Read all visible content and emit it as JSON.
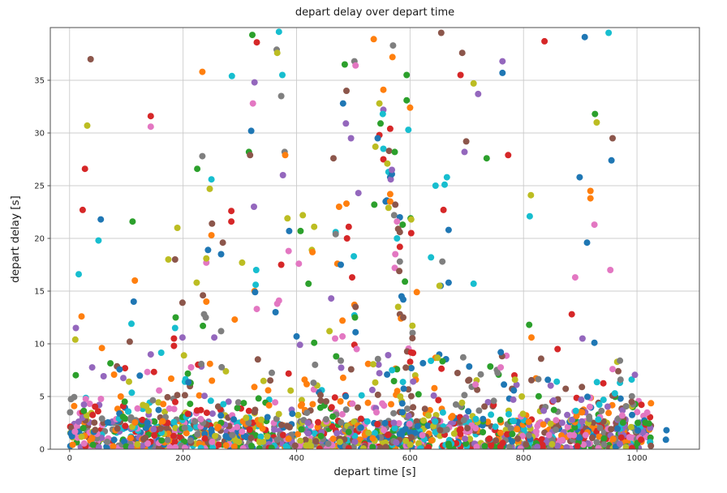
{
  "chart_data": {
    "type": "scatter",
    "title": "depart delay over depart time",
    "xlabel": "depart time [s]",
    "ylabel": "depart delay [s]",
    "xlim": [
      -34,
      1110
    ],
    "ylim": [
      0,
      40
    ],
    "x_ticks": [
      0,
      200,
      400,
      600,
      800,
      1000
    ],
    "y_ticks": [
      0,
      5,
      10,
      15,
      20,
      25,
      30,
      35
    ],
    "grid": true,
    "legend": "none",
    "marker_radius_px": 4,
    "palette": [
      "#1f77b4",
      "#ff7f0e",
      "#2ca02c",
      "#d62728",
      "#9467bd",
      "#8c564b",
      "#e377c2",
      "#7f7f7f",
      "#bcbd22",
      "#17becf"
    ],
    "palette_names": [
      "blue",
      "orange",
      "green",
      "red",
      "purple",
      "brown",
      "pink",
      "gray",
      "olive",
      "cyan"
    ],
    "colors": {
      "background": "#ffffff",
      "grid": "#cccccc",
      "spine": "#4d4d4d",
      "tick_text": "#262626"
    },
    "points": [
      [
        37,
        37.0,
        5
      ],
      [
        322,
        39.3,
        2
      ],
      [
        330,
        38.6,
        3
      ],
      [
        234,
        35.8,
        1
      ],
      [
        286,
        35.4,
        9
      ],
      [
        326,
        34.8,
        4
      ],
      [
        323,
        32.8,
        6
      ],
      [
        143,
        31.6,
        3
      ],
      [
        31,
        30.7,
        8
      ],
      [
        143,
        30.6,
        6
      ],
      [
        320,
        30.2,
        0
      ],
      [
        234,
        27.8,
        7
      ],
      [
        316,
        28.2,
        2
      ],
      [
        318,
        27.9,
        5
      ],
      [
        225,
        26.6,
        2
      ],
      [
        27,
        26.6,
        3
      ],
      [
        250,
        25.6,
        9
      ],
      [
        247,
        24.7,
        8
      ],
      [
        369,
        39.6,
        9
      ],
      [
        365,
        37.9,
        7
      ],
      [
        366,
        37.6,
        8
      ],
      [
        536,
        38.9,
        1
      ],
      [
        570,
        38.3,
        7
      ],
      [
        655,
        39.5,
        5
      ],
      [
        569,
        37.2,
        1
      ],
      [
        485,
        36.5,
        2
      ],
      [
        502,
        36.8,
        7
      ],
      [
        504,
        36.4,
        6
      ],
      [
        692,
        37.6,
        5
      ],
      [
        375,
        35.5,
        9
      ],
      [
        594,
        35.5,
        2
      ],
      [
        689,
        35.5,
        3
      ],
      [
        712,
        34.7,
        8
      ],
      [
        373,
        33.5,
        7
      ],
      [
        488,
        34.0,
        5
      ],
      [
        553,
        34.1,
        1
      ],
      [
        720,
        33.7,
        4
      ],
      [
        482,
        32.8,
        0
      ],
      [
        546,
        32.8,
        8
      ],
      [
        594,
        33.1,
        2
      ],
      [
        600,
        32.4,
        1
      ],
      [
        553,
        32.2,
        4
      ],
      [
        552,
        31.8,
        9
      ],
      [
        487,
        30.9,
        4
      ],
      [
        548,
        30.9,
        2
      ],
      [
        565,
        30.4,
        3
      ],
      [
        597,
        30.3,
        9
      ],
      [
        496,
        29.5,
        4
      ],
      [
        546,
        29.8,
        3
      ],
      [
        543,
        29.5,
        0
      ],
      [
        539,
        28.7,
        8
      ],
      [
        553,
        28.5,
        9
      ],
      [
        563,
        28.3,
        5
      ],
      [
        573,
        28.2,
        2
      ],
      [
        379,
        28.2,
        7
      ],
      [
        380,
        27.9,
        1
      ],
      [
        465,
        27.6,
        5
      ],
      [
        553,
        27.5,
        3
      ],
      [
        560,
        27.1,
        8
      ],
      [
        376,
        26.0,
        4
      ],
      [
        699,
        29.2,
        5
      ],
      [
        696,
        28.2,
        4
      ],
      [
        565,
        25.8,
        0
      ],
      [
        566,
        25.6,
        4
      ],
      [
        661,
        25.1,
        9
      ],
      [
        645,
        25.0,
        9
      ],
      [
        659,
        22.7,
        3
      ],
      [
        665,
        25.8,
        9
      ],
      [
        950,
        39.5,
        9
      ],
      [
        908,
        39.1,
        0
      ],
      [
        837,
        38.7,
        3
      ],
      [
        763,
        36.8,
        4
      ],
      [
        763,
        35.7,
        0
      ],
      [
        926,
        31.8,
        2
      ],
      [
        929,
        31.0,
        8
      ],
      [
        957,
        29.5,
        5
      ],
      [
        773,
        27.9,
        3
      ],
      [
        735,
        27.6,
        2
      ],
      [
        955,
        27.4,
        0
      ],
      [
        899,
        25.8,
        0
      ],
      [
        918,
        24.5,
        1
      ],
      [
        918,
        23.8,
        1
      ],
      [
        813,
        24.1,
        8
      ],
      [
        811,
        22.1,
        9
      ],
      [
        925,
        21.3,
        6
      ],
      [
        912,
        19.6,
        0
      ],
      [
        953,
        17.0,
        6
      ],
      [
        891,
        16.3,
        6
      ],
      [
        885,
        12.8,
        3
      ],
      [
        810,
        11.8,
        2
      ],
      [
        814,
        10.6,
        1
      ],
      [
        904,
        10.5,
        4
      ],
      [
        925,
        10.1,
        0
      ],
      [
        860,
        9.5,
        3
      ],
      [
        760,
        9.2,
        0
      ],
      [
        509,
        24.3,
        4
      ],
      [
        23,
        22.7,
        3
      ],
      [
        55,
        21.8,
        0
      ],
      [
        111,
        21.6,
        2
      ],
      [
        190,
        21.0,
        8
      ],
      [
        325,
        23.0,
        4
      ],
      [
        285,
        22.6,
        3
      ],
      [
        285,
        21.6,
        3
      ],
      [
        251,
        21.4,
        5
      ],
      [
        51,
        19.8,
        9
      ],
      [
        250,
        20.3,
        1
      ],
      [
        270,
        19.6,
        5
      ],
      [
        244,
        18.9,
        0
      ],
      [
        267,
        18.5,
        0
      ],
      [
        174,
        18.0,
        8
      ],
      [
        186,
        18.0,
        5
      ],
      [
        241,
        17.7,
        6
      ],
      [
        241,
        18.1,
        8
      ],
      [
        304,
        17.7,
        8
      ],
      [
        16,
        16.6,
        9
      ],
      [
        329,
        17.0,
        9
      ],
      [
        115,
        16.0,
        1
      ],
      [
        224,
        15.8,
        8
      ],
      [
        328,
        15.6,
        9
      ],
      [
        326,
        15.0,
        1
      ],
      [
        327,
        14.9,
        0
      ],
      [
        235,
        14.6,
        5
      ],
      [
        113,
        14.0,
        0
      ],
      [
        241,
        14.0,
        1
      ],
      [
        199,
        13.9,
        5
      ],
      [
        330,
        13.3,
        6
      ],
      [
        21,
        12.6,
        1
      ],
      [
        237,
        12.8,
        7
      ],
      [
        240,
        12.5,
        7
      ],
      [
        187,
        12.5,
        2
      ],
      [
        109,
        11.9,
        9
      ],
      [
        235,
        11.7,
        2
      ],
      [
        11,
        11.5,
        4
      ],
      [
        186,
        11.5,
        9
      ],
      [
        267,
        11.2,
        7
      ],
      [
        10,
        10.4,
        8
      ],
      [
        255,
        10.6,
        4
      ],
      [
        291,
        12.3,
        1
      ],
      [
        199,
        10.6,
        4
      ],
      [
        184,
        10.5,
        3
      ],
      [
        184,
        9.8,
        3
      ],
      [
        106,
        10.2,
        5
      ],
      [
        57,
        9.6,
        1
      ],
      [
        475,
        23.0,
        1
      ],
      [
        488,
        23.3,
        1
      ],
      [
        384,
        21.9,
        8
      ],
      [
        411,
        22.2,
        8
      ],
      [
        431,
        21.1,
        8
      ],
      [
        387,
        20.7,
        0
      ],
      [
        407,
        20.7,
        2
      ],
      [
        469,
        20.6,
        9
      ],
      [
        469,
        20.4,
        7
      ],
      [
        492,
        21.1,
        3
      ],
      [
        489,
        20.0,
        3
      ],
      [
        386,
        18.8,
        6
      ],
      [
        427,
        18.9,
        8
      ],
      [
        428,
        18.7,
        1
      ],
      [
        373,
        17.5,
        3
      ],
      [
        404,
        17.6,
        6
      ],
      [
        472,
        17.6,
        1
      ],
      [
        478,
        17.5,
        0
      ],
      [
        501,
        18.3,
        9
      ],
      [
        498,
        16.3,
        3
      ],
      [
        421,
        15.7,
        2
      ],
      [
        369,
        14.1,
        6
      ],
      [
        366,
        13.8,
        6
      ],
      [
        363,
        13.0,
        0
      ],
      [
        461,
        14.3,
        4
      ],
      [
        502,
        13.7,
        1
      ],
      [
        504,
        13.5,
        5
      ],
      [
        502,
        12.7,
        9
      ],
      [
        503,
        12.5,
        2
      ],
      [
        481,
        12.2,
        1
      ],
      [
        400,
        10.7,
        0
      ],
      [
        458,
        11.2,
        8
      ],
      [
        468,
        10.5,
        6
      ],
      [
        481,
        10.7,
        6
      ],
      [
        431,
        10.1,
        2
      ],
      [
        406,
        9.9,
        4
      ],
      [
        504,
        11.1,
        0
      ],
      [
        502,
        9.9,
        3
      ],
      [
        506,
        9.5,
        6
      ],
      [
        478,
        8.4,
        7
      ],
      [
        562,
        26.3,
        9
      ],
      [
        568,
        26.1,
        0
      ],
      [
        568,
        26.5,
        4
      ],
      [
        559,
        23.6,
        0
      ],
      [
        557,
        23.5,
        0
      ],
      [
        565,
        24.2,
        1
      ],
      [
        565,
        23.5,
        1
      ],
      [
        574,
        23.2,
        5
      ],
      [
        562,
        22.9,
        8
      ],
      [
        537,
        23.2,
        2
      ],
      [
        572,
        22.2,
        7
      ],
      [
        582,
        22.0,
        0
      ],
      [
        577,
        21.6,
        6
      ],
      [
        587,
        21.3,
        2
      ],
      [
        601,
        21.9,
        2
      ],
      [
        602,
        21.8,
        8
      ],
      [
        602,
        20.5,
        3
      ],
      [
        579,
        20.9,
        5
      ],
      [
        582,
        20.6,
        5
      ],
      [
        577,
        20.0,
        9
      ],
      [
        582,
        19.2,
        3
      ],
      [
        574,
        18.5,
        6
      ],
      [
        582,
        17.8,
        7
      ],
      [
        573,
        17.2,
        6
      ],
      [
        581,
        16.9,
        5
      ],
      [
        591,
        15.9,
        2
      ],
      [
        612,
        14.9,
        1
      ],
      [
        585,
        14.5,
        0
      ],
      [
        588,
        14.2,
        0
      ],
      [
        579,
        13.5,
        8
      ],
      [
        582,
        12.8,
        5
      ],
      [
        584,
        12.4,
        1
      ],
      [
        588,
        12.5,
        5
      ],
      [
        668,
        20.8,
        0
      ],
      [
        657,
        17.8,
        7
      ],
      [
        637,
        18.2,
        9
      ],
      [
        668,
        15.8,
        0
      ],
      [
        654,
        15.5,
        0
      ],
      [
        652,
        15.5,
        8
      ],
      [
        712,
        15.7,
        9
      ],
      [
        784,
        7.0,
        3
      ],
      [
        785,
        6.6,
        8
      ],
      [
        970,
        8.4,
        7
      ],
      [
        967,
        7.4,
        5
      ],
      [
        970,
        6.3,
        9
      ],
      [
        903,
        5.9,
        5
      ],
      [
        797,
        5.0,
        8
      ],
      [
        782,
        4.7,
        4
      ],
      [
        903,
        3.5,
        1
      ],
      [
        967,
        2.9,
        7
      ],
      [
        974,
        3.2,
        6
      ],
      [
        957,
        7.6,
        6
      ],
      [
        971,
        6.6,
        7
      ],
      [
        961,
        5.3,
        9
      ],
      [
        1052,
        1.8,
        0
      ],
      [
        1051,
        0.9,
        0
      ]
    ],
    "dense_bands": [
      {
        "label": "base-dense-band",
        "count": 1300,
        "x": [
          0,
          1026
        ],
        "y": [
          0.05,
          2.7
        ],
        "pow": 1.25
      },
      {
        "label": "low-mid-band",
        "count": 310,
        "x": [
          0,
          1026
        ],
        "y": [
          2.5,
          5.2
        ],
        "pow": 1.5
      },
      {
        "label": "sparse-upper-band",
        "count": 120,
        "x": [
          4,
          1015
        ],
        "y": [
          5.0,
          9.2
        ],
        "pow": 1.15
      },
      {
        "label": "stripe-x595",
        "count": 16,
        "x": [
          585,
          606
        ],
        "y": [
          3.0,
          12.0
        ],
        "pow": 1.0
      },
      {
        "label": "plume-x200",
        "count": 8,
        "x": [
          196,
          215
        ],
        "y": [
          3.0,
          9.8
        ],
        "pow": 1.0
      }
    ],
    "seed": 13
  }
}
